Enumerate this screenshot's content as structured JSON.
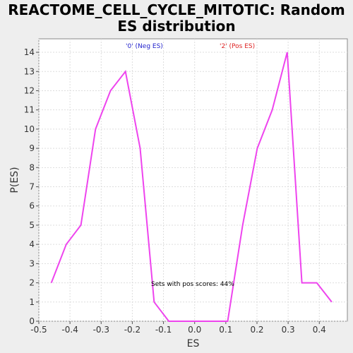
{
  "chart_data": {
    "type": "line",
    "title_line1": "REACTOME_CELL_CYCLE_MITOTIC: Random",
    "title_line2": "ES distribution",
    "xlabel": "ES",
    "ylabel": "P(ES)",
    "xlim": [
      -0.5,
      0.49
    ],
    "ylim": [
      0,
      14.7
    ],
    "xticks": [
      -0.5,
      -0.4,
      -0.3,
      -0.2,
      -0.1,
      0.0,
      0.1,
      0.2,
      0.3,
      0.4
    ],
    "xtick_labels": [
      "-0.5",
      "-0.4",
      "-0.3",
      "-0.2",
      "-0.1",
      "0.0",
      "0.1",
      "0.2",
      "0.3",
      "0.4"
    ],
    "yticks": [
      0,
      1,
      2,
      3,
      4,
      5,
      6,
      7,
      8,
      9,
      10,
      11,
      12,
      13,
      14
    ],
    "grid": true,
    "series_color": "#ee44ee",
    "series": [
      {
        "x": [
          -0.46,
          -0.412,
          -0.365,
          -0.318,
          -0.27,
          -0.222,
          -0.175,
          -0.13,
          -0.083,
          -0.036,
          0.011,
          0.059,
          0.106,
          0.154,
          0.201,
          0.249,
          0.297,
          0.344,
          0.392,
          0.44
        ],
        "y": [
          2,
          4,
          5,
          10,
          12,
          13,
          9,
          1,
          0,
          0,
          0,
          0,
          0,
          5,
          9,
          11,
          14,
          2,
          2,
          1
        ]
      }
    ],
    "annotations": {
      "neg_label": "'0' (Neg ES)",
      "neg_color": "#2222cc",
      "pos_label": "'2' (Pos ES)",
      "pos_color": "#dd2222",
      "pos_scores": "Sets with pos scores: 44%"
    }
  }
}
